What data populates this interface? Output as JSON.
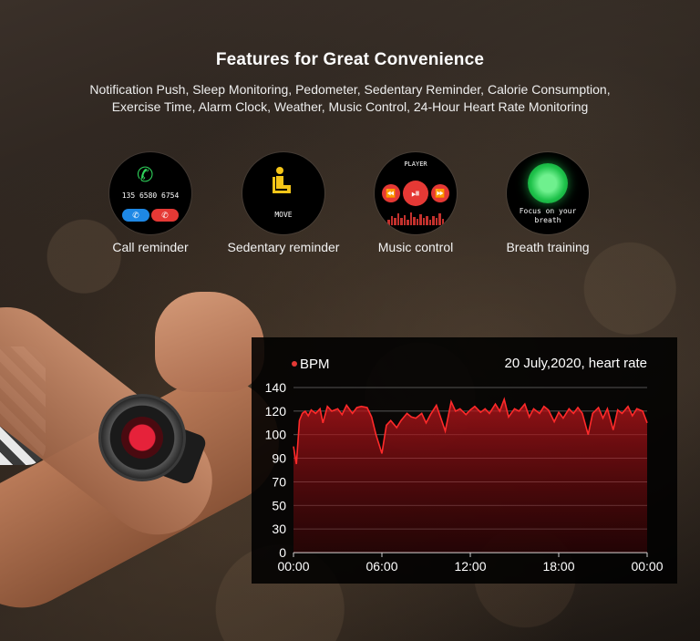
{
  "header": {
    "title": "Features for Great Convenience",
    "subtitle_line1": "Notification Push, Sleep Monitoring, Pedometer, Sedentary Reminder, Calorie Consumption,",
    "subtitle_line2": "Exercise Time, Alarm Clock, Weather, Music Control, 24-Hour Heart Rate Monitoring"
  },
  "features": {
    "call": {
      "label": "Call reminder",
      "number": "135 6580 6754",
      "icon": "phone-ringing-icon"
    },
    "sedentary": {
      "label": "Sedentary reminder",
      "screen_text": "MOVE",
      "icon": "sitting-person-icon"
    },
    "music": {
      "label": "Music control",
      "screen_text": "PLAYER",
      "icon": "play-pause-icon"
    },
    "breath": {
      "label": "Breath training",
      "screen_text_1": "Focus on your",
      "screen_text_2": "breath",
      "icon": "breath-ball-icon"
    }
  },
  "colors": {
    "accent_red": "#e53935",
    "green": "#2fd35b",
    "blue": "#1e88e5"
  },
  "chart_data": {
    "type": "area",
    "title": "20 July,2020, heart rate",
    "ylabel": "BPM",
    "xlabel": "",
    "x_ticks": [
      "00:00",
      "06:00",
      "12:00",
      "18:00",
      "00:00"
    ],
    "y_ticks": [
      0,
      30,
      50,
      70,
      90,
      100,
      120,
      140
    ],
    "ylim": [
      0,
      140
    ],
    "xlim": [
      0,
      24
    ],
    "grid": true,
    "series": [
      {
        "x": [
          0,
          0.2,
          0.4,
          0.6,
          0.8,
          1,
          1.2,
          1.5,
          1.8,
          2,
          2.3,
          2.6,
          3,
          3.3,
          3.6,
          4,
          4.3,
          4.6,
          5,
          5.3,
          5.6,
          6,
          6.3,
          6.6,
          7,
          7.3,
          7.7,
          8,
          8.3,
          8.7,
          9,
          9.3,
          9.7,
          10,
          10.3,
          10.7,
          11,
          11.3,
          11.7,
          12,
          12.3,
          12.7,
          13,
          13.3,
          13.7,
          14,
          14.3,
          14.6,
          15,
          15.3,
          15.7,
          16,
          16.3,
          16.7,
          17,
          17.3,
          17.7,
          18,
          18.3,
          18.7,
          19,
          19.3,
          19.6,
          20,
          20.3,
          20.7,
          21,
          21.3,
          21.7,
          22,
          22.3,
          22.7,
          23,
          23.3,
          23.7,
          24
        ],
        "y": [
          95,
          85,
          112,
          118,
          120,
          116,
          121,
          118,
          122,
          110,
          124,
          120,
          122,
          117,
          125,
          118,
          123,
          124,
          123,
          115,
          100,
          92,
          108,
          112,
          106,
          112,
          118,
          115,
          114,
          118,
          110,
          117,
          125,
          114,
          103,
          128,
          120,
          122,
          117,
          121,
          124,
          119,
          122,
          118,
          126,
          120,
          130,
          115,
          122,
          120,
          126,
          115,
          122,
          118,
          124,
          121,
          111,
          119,
          114,
          122,
          118,
          123,
          118,
          100,
          118,
          123,
          114,
          122,
          104,
          121,
          118,
          124,
          116,
          122,
          120,
          110
        ]
      }
    ]
  }
}
